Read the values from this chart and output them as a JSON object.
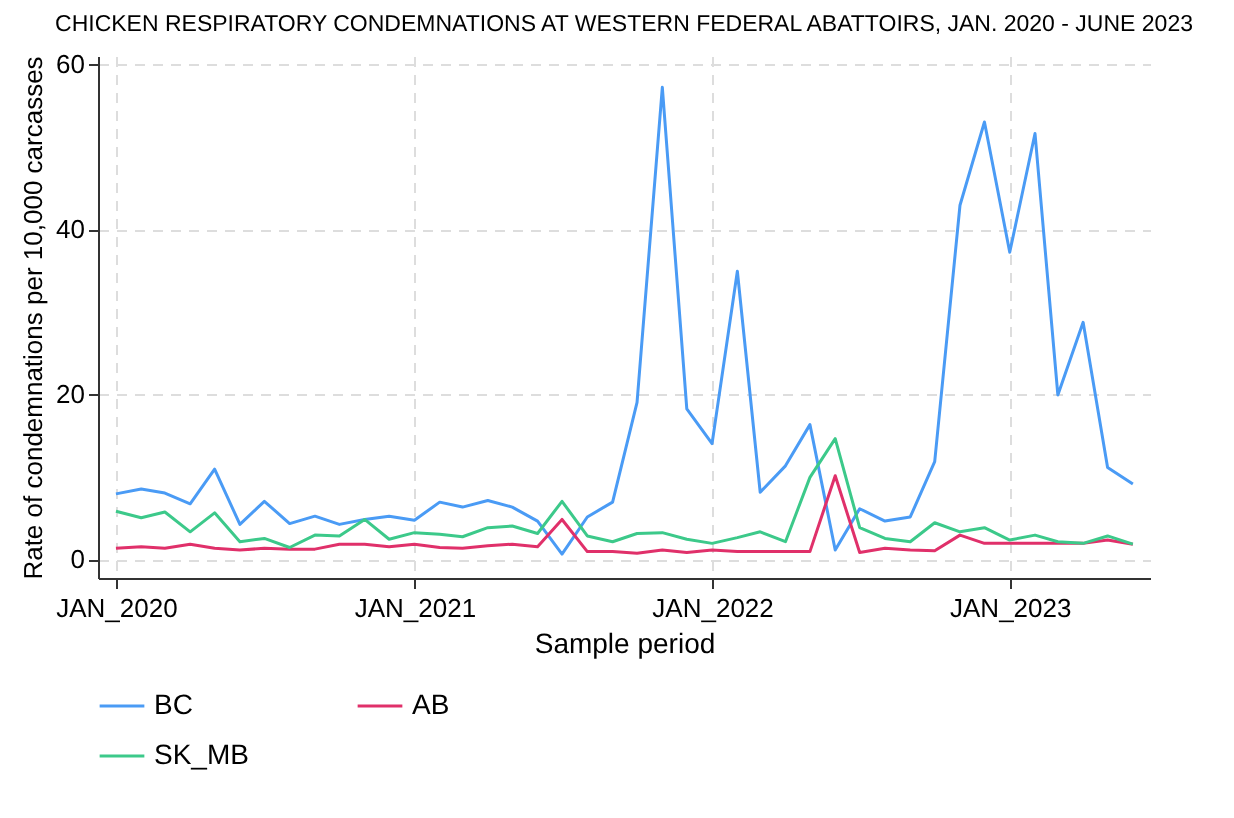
{
  "chart_data": {
    "type": "line",
    "title": "CHICKEN RESPIRATORY CONDEMNATIONS AT WESTERN FEDERAL ABATTOIRS, JAN. 2020 - JUNE 2023",
    "xlabel": "Sample period",
    "ylabel": "Rate of condemnations per 10,000 carcasses",
    "x": [
      "2020-01",
      "2020-02",
      "2020-03",
      "2020-04",
      "2020-05",
      "2020-06",
      "2020-07",
      "2020-08",
      "2020-09",
      "2020-10",
      "2020-11",
      "2020-12",
      "2021-01",
      "2021-02",
      "2021-03",
      "2021-04",
      "2021-05",
      "2021-06",
      "2021-07",
      "2021-08",
      "2021-09",
      "2021-10",
      "2021-11",
      "2021-12",
      "2022-01",
      "2022-02",
      "2022-03",
      "2022-04",
      "2022-05",
      "2022-06",
      "2022-07",
      "2022-08",
      "2022-09",
      "2022-10",
      "2022-11",
      "2022-12",
      "2023-01",
      "2023-02",
      "2023-03",
      "2023-04",
      "2023-05",
      "2023-06"
    ],
    "series": [
      {
        "name": "BC",
        "color": "#4a9bf5",
        "values": [
          7.9,
          8.5,
          8.0,
          6.7,
          10.9,
          4.2,
          7.0,
          4.3,
          5.2,
          4.2,
          4.8,
          5.2,
          4.7,
          6.9,
          6.3,
          7.1,
          6.3,
          4.6,
          0.6,
          5.1,
          6.9,
          19.0,
          57.2,
          18.2,
          14.0,
          34.9,
          8.1,
          11.3,
          16.3,
          1.1,
          6.1,
          4.6,
          5.1,
          11.8,
          42.9,
          53.0,
          37.2,
          51.6,
          19.9,
          28.7,
          11.1,
          9.1
        ]
      },
      {
        "name": "AB",
        "color": "#e0306a",
        "values": [
          1.3,
          1.5,
          1.3,
          1.8,
          1.3,
          1.1,
          1.3,
          1.2,
          1.2,
          1.8,
          1.8,
          1.5,
          1.8,
          1.4,
          1.3,
          1.6,
          1.8,
          1.5,
          4.8,
          0.9,
          0.9,
          0.7,
          1.1,
          0.8,
          1.1,
          0.9,
          0.9,
          0.9,
          0.9,
          10.1,
          0.8,
          1.3,
          1.1,
          1.0,
          2.9,
          1.9,
          1.9,
          1.9,
          1.9,
          1.9,
          2.3,
          1.8
        ]
      },
      {
        "name": "SK_MB",
        "color": "#3cc98a",
        "values": [
          5.8,
          5.0,
          5.7,
          3.3,
          5.6,
          2.1,
          2.5,
          1.4,
          2.9,
          2.8,
          4.8,
          2.4,
          3.2,
          3.0,
          2.7,
          3.8,
          4.0,
          3.1,
          7.0,
          2.8,
          2.1,
          3.1,
          3.2,
          2.4,
          1.9,
          2.6,
          3.3,
          2.1,
          9.9,
          14.6,
          3.8,
          2.5,
          2.1,
          4.4,
          3.3,
          3.8,
          2.3,
          2.9,
          2.1,
          1.9,
          2.8,
          1.8
        ]
      }
    ],
    "xlim": [
      "2019-12-10",
      "2023-06-22"
    ],
    "xticks": [
      {
        "value": "2020-01",
        "label": "JAN_2020"
      },
      {
        "value": "2021-01",
        "label": "JAN_2021"
      },
      {
        "value": "2022-01",
        "label": "JAN_2022"
      },
      {
        "value": "2023-01",
        "label": "JAN_2023"
      }
    ],
    "ylim": [
      -2.3,
      61
    ],
    "yticks": [
      0,
      20,
      40,
      60
    ],
    "grid": true,
    "legend": "bottom",
    "line_style": "solid"
  }
}
